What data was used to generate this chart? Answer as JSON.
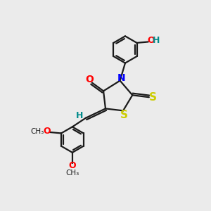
{
  "bg_color": "#ebebeb",
  "bond_color": "#1a1a1a",
  "atom_colors": {
    "O": "#ff0000",
    "N": "#0000ff",
    "S": "#cccc00",
    "H": "#008b8b",
    "C": "#1a1a1a"
  },
  "figsize": [
    3.0,
    3.0
  ],
  "dpi": 100,
  "lw": 1.6,
  "ring_r": 0.62
}
